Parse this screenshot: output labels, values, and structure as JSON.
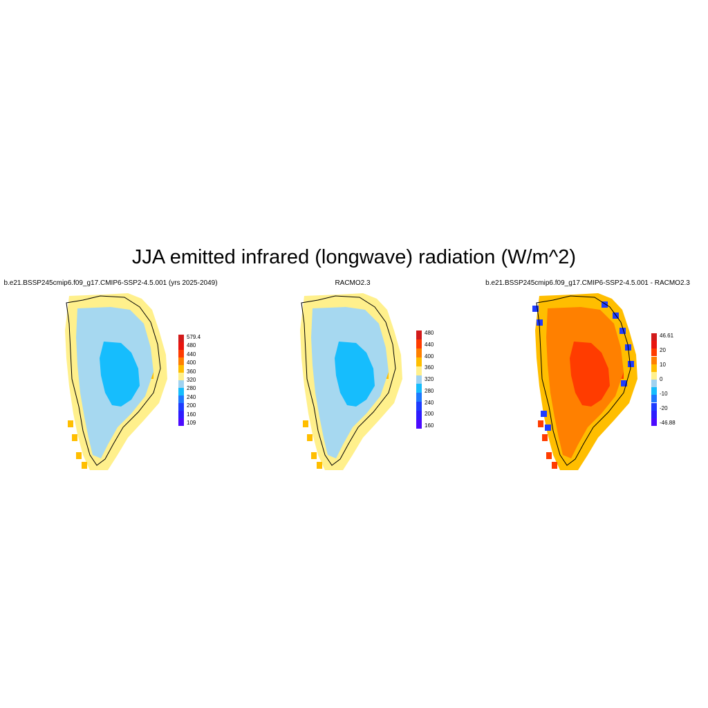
{
  "title": "JJA emitted infrared (longwave) radiation (W/m^2)",
  "panels": [
    {
      "title": "b.e21.BSSP245cmip6.f09_g17.CMIP6-SSP2-4.5.001 (yrs 2025-2049)",
      "colorbar": {
        "labels": [
          "579.4",
          "480",
          "440",
          "400",
          "360",
          "320",
          "280",
          "240",
          "200",
          "160",
          "109"
        ],
        "colors": [
          "#d21a1a",
          "#e8150f",
          "#ff3c00",
          "#ff8000",
          "#ffbe00",
          "#fff08c",
          "#a0d2f0",
          "#16bdfd",
          "#1e78ff",
          "#1e3cff",
          "#2d1cff",
          "#4b0aff"
        ]
      },
      "fields": {
        "ice_core": "#16bdfd",
        "ice_mid": "#a6d8f0",
        "margin": "#fff08c",
        "margin_warm": "#ffbe00"
      }
    },
    {
      "title": "RACMO2.3",
      "colorbar": {
        "labels": [
          "480",
          "440",
          "400",
          "360",
          "320",
          "280",
          "240",
          "200",
          "160"
        ],
        "colors": [
          "#d21a1a",
          "#ff3c00",
          "#ff8000",
          "#ffbe00",
          "#fff08c",
          "#a0d2f0",
          "#16bdfd",
          "#1e78ff",
          "#1e3cff",
          "#2d1cff",
          "#4b0aff"
        ]
      },
      "fields": {
        "ice_core": "#16bdfd",
        "ice_mid": "#a6d8f0",
        "margin": "#fff08c",
        "margin_warm": "#ffbe00"
      }
    },
    {
      "title": "b.e21.BSSP245cmip6.f09_g17.CMIP6-SSP2-4.5.001 - RACMO2.3",
      "colorbar": {
        "labels": [
          "46.61",
          "20",
          "10",
          "0",
          "-10",
          "-20",
          "-46.88"
        ],
        "colors": [
          "#d21a1a",
          "#e8150f",
          "#ff3c00",
          "#ff8000",
          "#ffbe00",
          "#fff08c",
          "#a0d2f0",
          "#16bdfd",
          "#1e78ff",
          "#1e3cff",
          "#2d1cff",
          "#4b0aff"
        ]
      },
      "fields": {
        "ice_core": "#ff3c00",
        "ice_mid": "#ff8000",
        "margin": "#ffbe00",
        "margin_warm": "#ff3c00",
        "edge_cool": "#1e3cff"
      }
    }
  ]
}
